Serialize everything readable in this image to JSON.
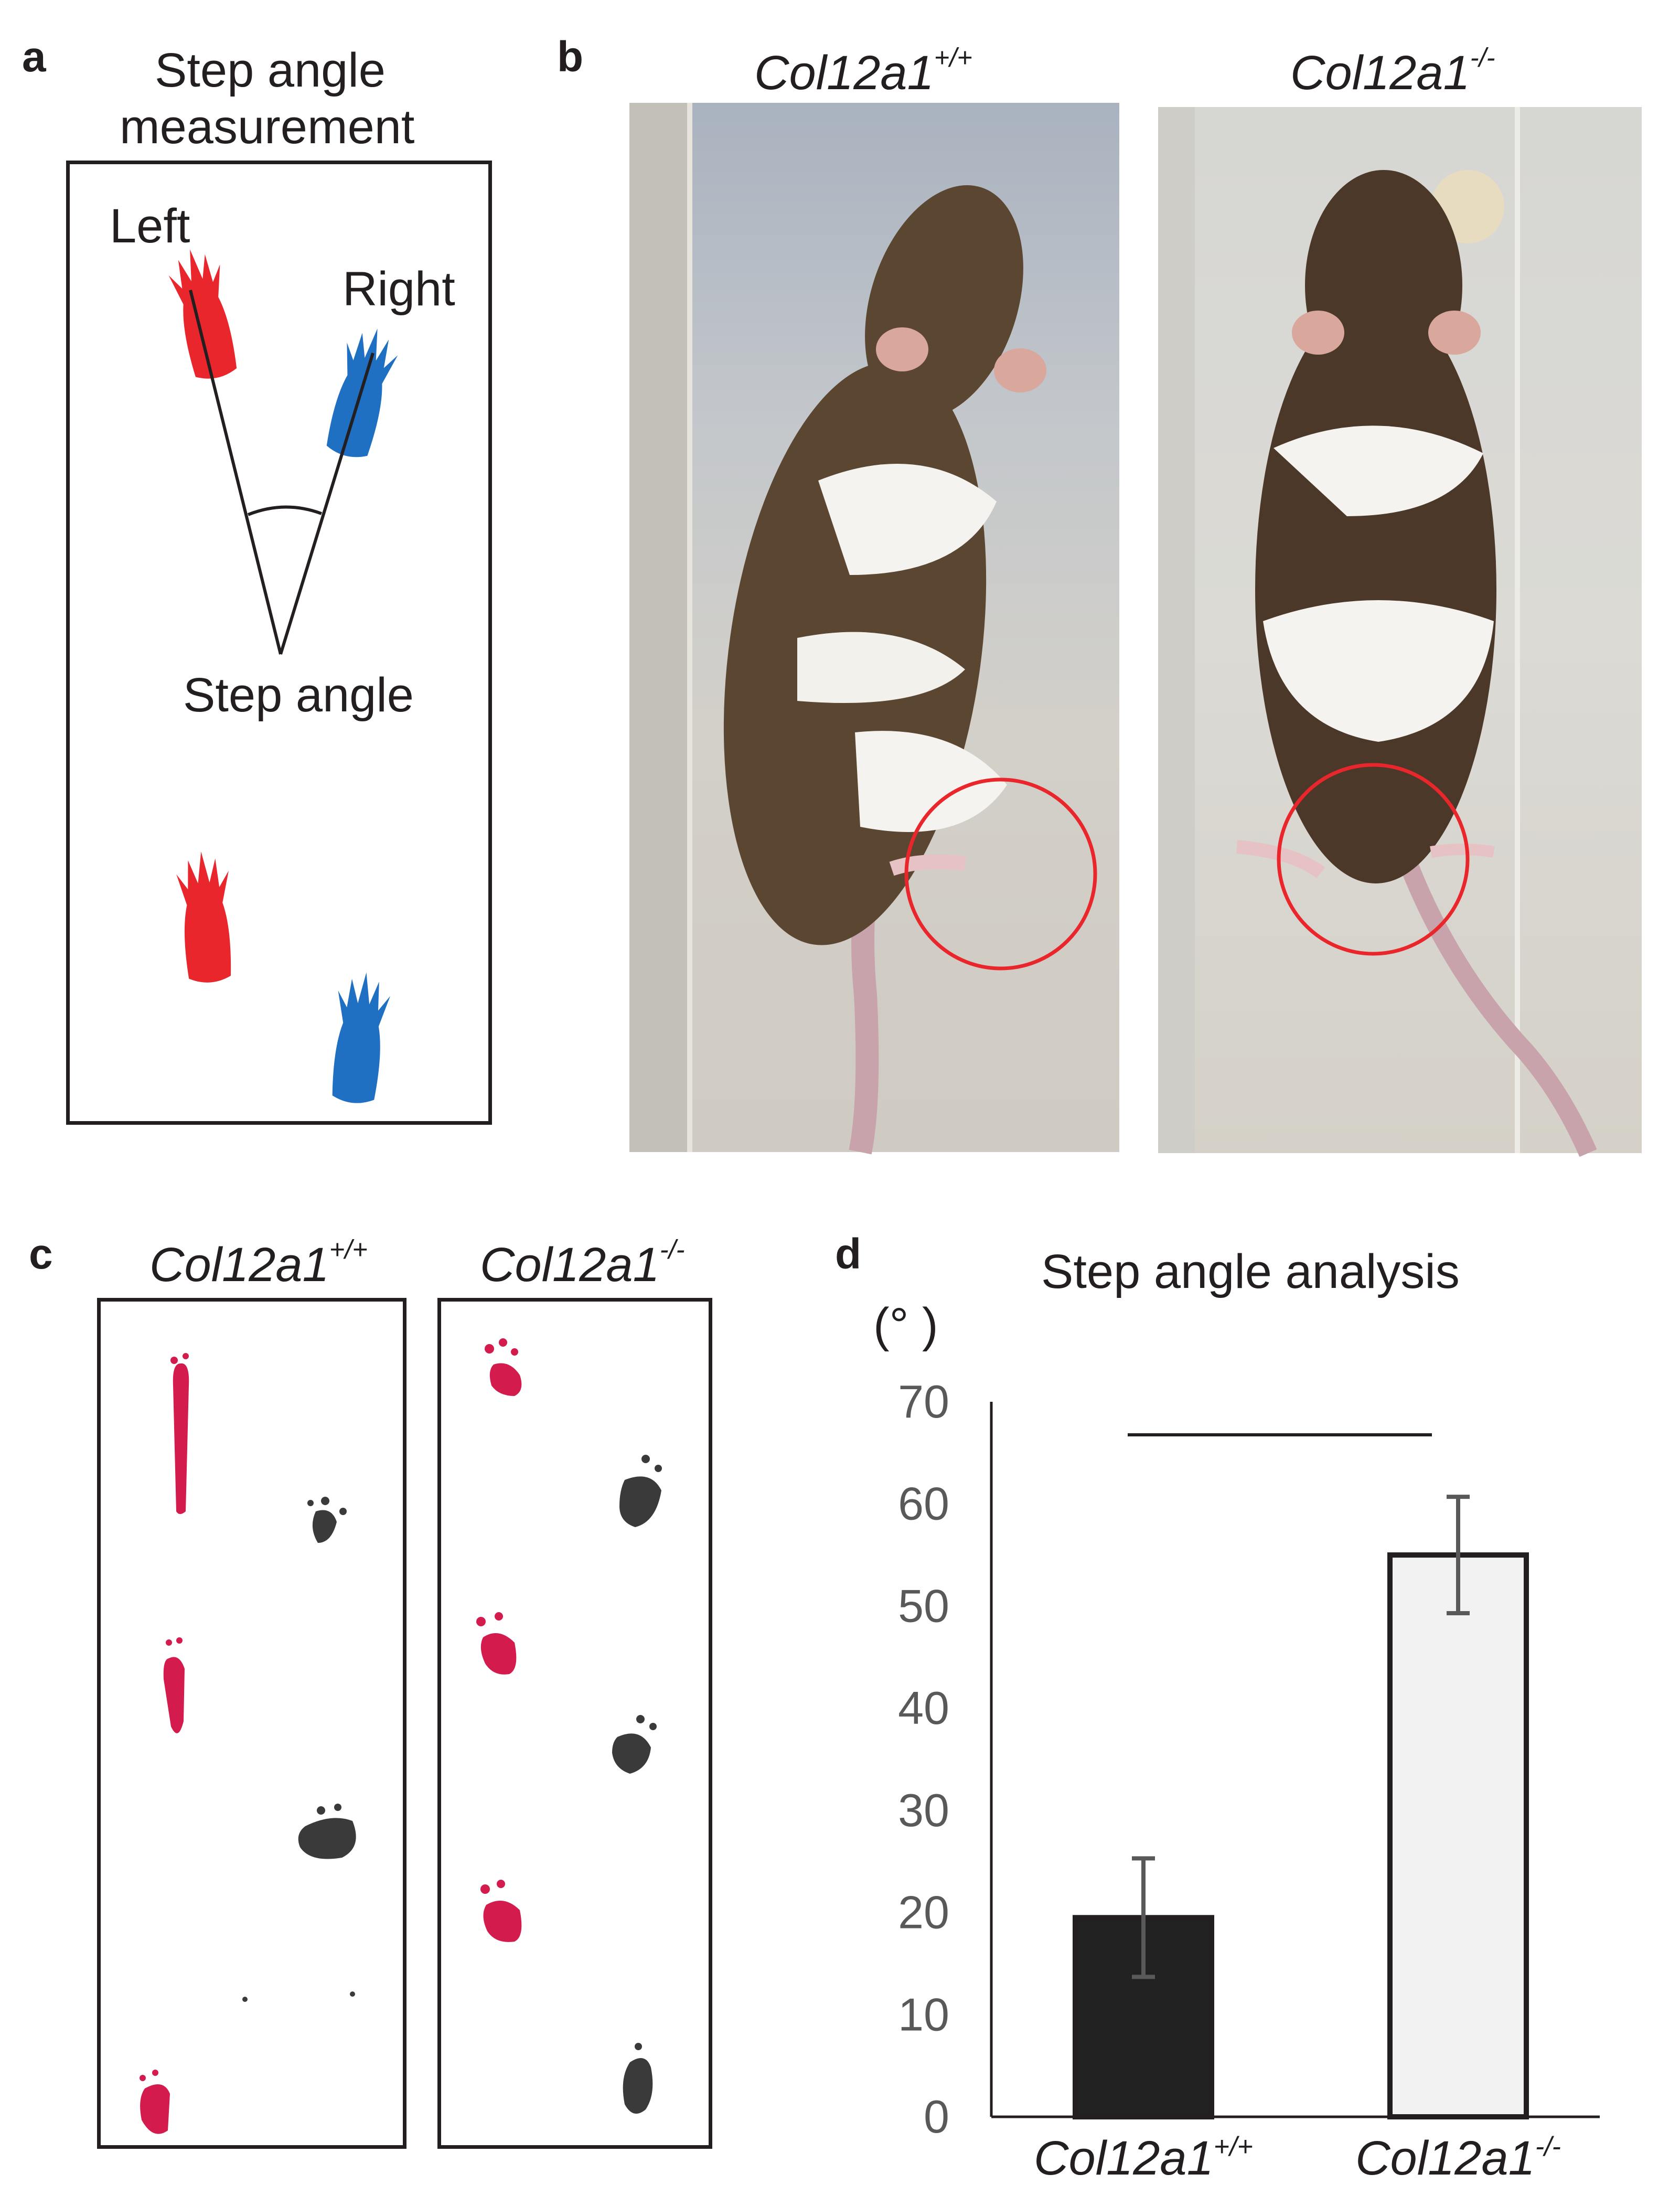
{
  "panels": {
    "a": {
      "letter": "a",
      "title_line1": "Step angle",
      "title_line2": "measurement",
      "left_label": "Left",
      "right_label": "Right",
      "angle_label": "Step angle",
      "colors": {
        "left_paw": "#e8262b",
        "right_paw": "#1f6fc2"
      }
    },
    "b": {
      "letter": "b",
      "wt_label_base": "Col12a1",
      "wt_label_sup": "+/+",
      "ko_label_base": "Col12a1",
      "ko_label_sup": "-/-",
      "circle_color": "#e8262b"
    },
    "c": {
      "letter": "c",
      "wt_label_base": "Col12a1",
      "wt_label_sup": "+/+",
      "ko_label_base": "Col12a1",
      "ko_label_sup": "-/-",
      "colors": {
        "front_print": "#d31b4d",
        "hind_print": "#3a3a3a"
      }
    },
    "d": {
      "letter": "d",
      "unit_label": "(°  )"
    }
  },
  "chart_data": {
    "type": "bar",
    "title": "Step angle analysis",
    "ylabel": "(°  )",
    "xlabel": "",
    "categories": [
      "Col12a1+/+",
      "Col12a1-/-"
    ],
    "category_labels": [
      {
        "base": "Col12a1",
        "sup": "+/+"
      },
      {
        "base": "Col12a1",
        "sup": "-/-"
      }
    ],
    "values": [
      19.5,
      55
    ],
    "error": [
      5.8,
      5.7
    ],
    "ylim": [
      0,
      70
    ],
    "yticks": [
      "0",
      "10",
      "20",
      "30",
      "40",
      "50",
      "60",
      "70"
    ],
    "bar_colors": [
      "#222222",
      "#f2f2f2"
    ],
    "significance_bracket": true,
    "grid": false,
    "legend": "none"
  }
}
